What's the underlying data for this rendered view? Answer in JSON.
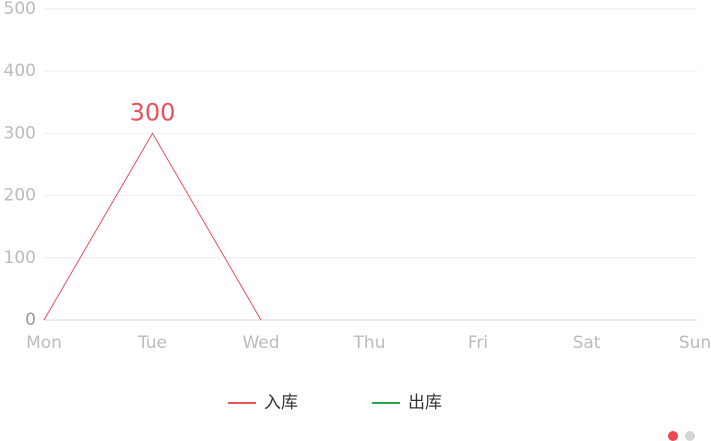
{
  "chart_data": {
    "type": "line",
    "categories": [
      "Mon",
      "Tue",
      "Wed",
      "Thu",
      "Fri",
      "Sat",
      "Sun"
    ],
    "series": [
      {
        "name": "入库",
        "color": "#e9525a",
        "values": [
          0,
          300,
          0,
          null,
          null,
          null,
          null
        ],
        "value_labels": [
          null,
          "300",
          null,
          null,
          null,
          null,
          null
        ]
      },
      {
        "name": "出库",
        "color": "#2aa744",
        "values": [
          null,
          null,
          null,
          null,
          null,
          null,
          null
        ]
      }
    ],
    "ylim": [
      0,
      500
    ],
    "yticks": [
      0,
      100,
      200,
      300,
      400,
      500
    ],
    "grid": true
  }
}
